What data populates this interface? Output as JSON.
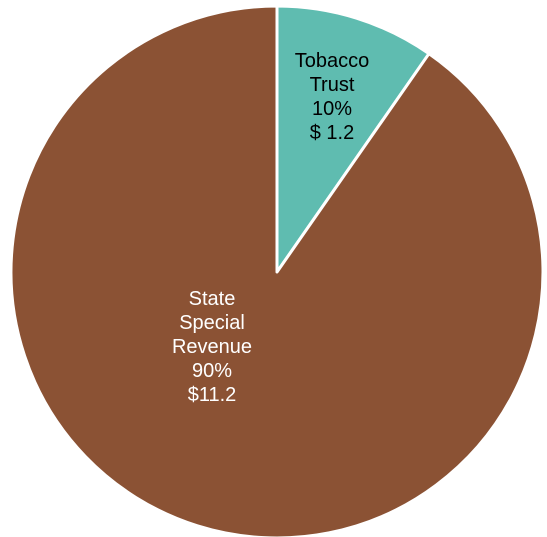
{
  "chart_data": {
    "type": "pie",
    "title": "",
    "slices": [
      {
        "name": "Tobacco Trust",
        "label_lines": [
          "Tobacco",
          "Trust",
          "10%",
          "$ 1.2"
        ],
        "percent": 10,
        "value": 1.2,
        "color": "#5fbcb0",
        "label_color": "#000000"
      },
      {
        "name": "State Special Revenue",
        "label_lines": [
          "State",
          "Special",
          "Revenue",
          "90%",
          "$11.2"
        ],
        "percent": 90,
        "value": 11.2,
        "color": "#8b5234",
        "label_color": "#ffffff"
      }
    ],
    "start_angle_deg": 0,
    "direction": "clockwise",
    "slice_separator_color": "#ffffff"
  }
}
